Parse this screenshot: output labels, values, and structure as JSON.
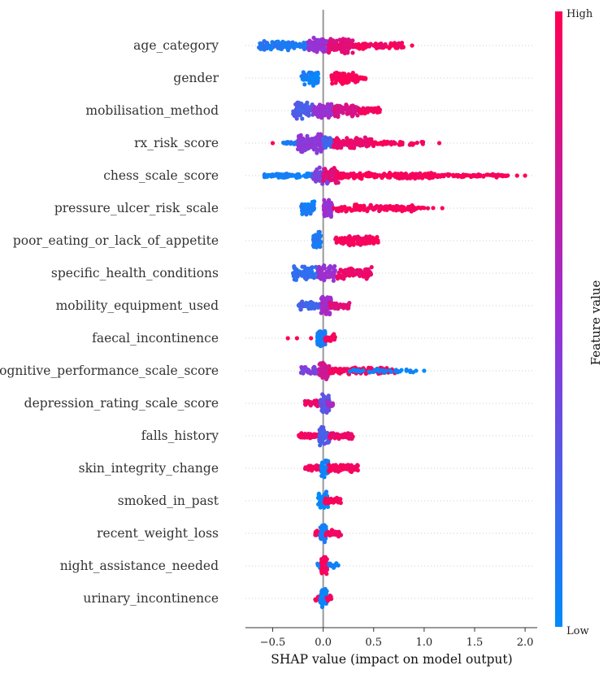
{
  "chart_data": {
    "type": "beeswarm",
    "title": "",
    "xlabel": "SHAP value (impact on model output)",
    "xlim": [
      -0.77,
      2.12
    ],
    "xticks": [
      -0.5,
      0.0,
      0.5,
      1.0,
      1.5,
      2.0
    ],
    "xtick_labels": [
      "−0.5",
      "0.0",
      "0.5",
      "1.0",
      "1.5",
      "2.0"
    ],
    "colorbar": {
      "title": "Feature value",
      "high_label": "High",
      "low_label": "Low",
      "low_color": "#008bfb",
      "mid_color": "#9b30d4",
      "high_color": "#ff0052"
    },
    "zero_line_color": "#999999",
    "features": [
      {
        "name": "age_category",
        "segments": [
          {
            "from": -0.65,
            "to": -0.1,
            "count": 120,
            "spread": 0.45,
            "value": 0.1
          },
          {
            "from": -0.15,
            "to": 0.05,
            "count": 80,
            "spread": 0.9,
            "value": 0.5
          },
          {
            "from": 0.05,
            "to": 0.3,
            "count": 100,
            "spread": 0.8,
            "value": 0.85
          },
          {
            "from": 0.3,
            "to": 0.8,
            "count": 80,
            "spread": 0.35,
            "value": 0.95
          }
        ],
        "outliers": [
          {
            "x": 0.88,
            "value": 1.0
          }
        ]
      },
      {
        "name": "gender",
        "segments": [
          {
            "from": -0.22,
            "to": -0.05,
            "count": 70,
            "spread": 0.75,
            "value": 0.05
          },
          {
            "from": 0.08,
            "to": 0.35,
            "count": 80,
            "spread": 0.65,
            "value": 0.97
          },
          {
            "from": 0.35,
            "to": 0.42,
            "count": 10,
            "spread": 0.15,
            "value": 0.97
          }
        ],
        "outliers": []
      },
      {
        "name": "mobilisation_method",
        "segments": [
          {
            "from": -0.3,
            "to": -0.1,
            "count": 80,
            "spread": 0.85,
            "value": 0.25
          },
          {
            "from": -0.1,
            "to": 0.1,
            "count": 80,
            "spread": 0.75,
            "value": 0.5
          },
          {
            "from": 0.1,
            "to": 0.35,
            "count": 80,
            "spread": 0.65,
            "value": 0.8
          },
          {
            "from": 0.35,
            "to": 0.57,
            "count": 50,
            "spread": 0.3,
            "value": 0.95
          }
        ],
        "outliers": []
      },
      {
        "name": "rx_risk_score",
        "segments": [
          {
            "from": -0.42,
            "to": -0.25,
            "count": 20,
            "spread": 0.15,
            "value": 0.1
          },
          {
            "from": -0.25,
            "to": 0.0,
            "count": 120,
            "spread": 0.95,
            "value": 0.45
          },
          {
            "from": 0.0,
            "to": 0.1,
            "count": 40,
            "spread": 0.6,
            "value": 0.2
          },
          {
            "from": 0.1,
            "to": 0.5,
            "count": 110,
            "spread": 0.55,
            "value": 0.9
          },
          {
            "from": 0.5,
            "to": 1.0,
            "count": 40,
            "spread": 0.2,
            "value": 0.95
          }
        ],
        "outliers": [
          {
            "x": -0.5,
            "value": 1.0
          },
          {
            "x": 1.15,
            "value": 1.0
          }
        ]
      },
      {
        "name": "chess_scale_score",
        "segments": [
          {
            "from": -0.6,
            "to": -0.1,
            "count": 90,
            "spread": 0.25,
            "value": 0.05
          },
          {
            "from": -0.1,
            "to": 0.05,
            "count": 60,
            "spread": 0.85,
            "value": 0.4
          },
          {
            "from": 0.0,
            "to": 0.15,
            "count": 60,
            "spread": 0.8,
            "value": 0.85
          },
          {
            "from": 0.15,
            "to": 1.1,
            "count": 200,
            "spread": 0.3,
            "value": 0.97
          },
          {
            "from": 1.1,
            "to": 1.85,
            "count": 80,
            "spread": 0.18,
            "value": 0.97
          }
        ],
        "outliers": [
          {
            "x": 1.92,
            "value": 1.0
          },
          {
            "x": 2.0,
            "value": 1.0
          },
          {
            "x": 1.12,
            "value": 1.0
          }
        ]
      },
      {
        "name": "pressure_ulcer_risk_scale",
        "segments": [
          {
            "from": -0.22,
            "to": -0.08,
            "count": 60,
            "spread": 0.65,
            "value": 0.08
          },
          {
            "from": 0.0,
            "to": 0.09,
            "count": 60,
            "spread": 0.9,
            "value": 0.5
          },
          {
            "from": 0.1,
            "to": 0.9,
            "count": 130,
            "spread": 0.35,
            "value": 0.97
          },
          {
            "from": 0.9,
            "to": 1.1,
            "count": 10,
            "spread": 0.1,
            "value": 0.97
          }
        ],
        "outliers": [
          {
            "x": 1.18,
            "value": 1.0
          }
        ]
      },
      {
        "name": "poor_eating_or_lack_of_appetite",
        "segments": [
          {
            "from": -0.1,
            "to": -0.02,
            "count": 60,
            "spread": 0.85,
            "value": 0.1
          },
          {
            "from": 0.12,
            "to": 0.55,
            "count": 120,
            "spread": 0.5,
            "value": 0.96
          }
        ],
        "outliers": []
      },
      {
        "name": "specific_health_conditions",
        "segments": [
          {
            "from": -0.3,
            "to": -0.05,
            "count": 80,
            "spread": 0.75,
            "value": 0.15
          },
          {
            "from": -0.05,
            "to": 0.12,
            "count": 60,
            "spread": 0.85,
            "value": 0.5
          },
          {
            "from": 0.12,
            "to": 0.48,
            "count": 90,
            "spread": 0.6,
            "value": 0.9
          }
        ],
        "outliers": []
      },
      {
        "name": "mobility_equipment_used",
        "segments": [
          {
            "from": -0.25,
            "to": 0.0,
            "count": 60,
            "spread": 0.4,
            "value": 0.2
          },
          {
            "from": -0.02,
            "to": 0.08,
            "count": 60,
            "spread": 0.95,
            "value": 0.55
          },
          {
            "from": 0.05,
            "to": 0.26,
            "count": 40,
            "spread": 0.35,
            "value": 0.85
          }
        ],
        "outliers": []
      },
      {
        "name": "faecal_incontinence",
        "segments": [
          {
            "from": -0.06,
            "to": 0.02,
            "count": 60,
            "spread": 0.9,
            "value": 0.08
          },
          {
            "from": 0.02,
            "to": 0.12,
            "count": 30,
            "spread": 0.45,
            "value": 0.95
          }
        ],
        "outliers": [
          {
            "x": -0.35,
            "value": 1.0
          },
          {
            "x": -0.26,
            "value": 1.0
          },
          {
            "x": -0.12,
            "value": 1.0
          }
        ]
      },
      {
        "name": "cognitive_performance_scale_score",
        "segments": [
          {
            "from": -0.22,
            "to": 0.0,
            "count": 50,
            "spread": 0.45,
            "value": 0.4
          },
          {
            "from": -0.04,
            "to": 0.06,
            "count": 60,
            "spread": 0.95,
            "value": 0.75
          },
          {
            "from": 0.06,
            "to": 0.72,
            "count": 140,
            "spread": 0.35,
            "value": 0.95
          },
          {
            "from": 0.2,
            "to": 0.9,
            "count": 40,
            "spread": 0.25,
            "value": 0.05
          }
        ],
        "outliers": [
          {
            "x": 0.92,
            "value": 0.0
          },
          {
            "x": 1.0,
            "value": 0.0
          }
        ]
      },
      {
        "name": "depression_rating_scale_score",
        "segments": [
          {
            "from": -0.18,
            "to": -0.04,
            "count": 30,
            "spread": 0.35,
            "value": 0.92
          },
          {
            "from": -0.03,
            "to": 0.06,
            "count": 60,
            "spread": 0.95,
            "value": 0.3
          },
          {
            "from": 0.04,
            "to": 0.1,
            "count": 20,
            "spread": 0.45,
            "value": 0.6
          }
        ],
        "outliers": []
      },
      {
        "name": "falls_history",
        "segments": [
          {
            "from": -0.25,
            "to": -0.03,
            "count": 40,
            "spread": 0.25,
            "value": 0.95
          },
          {
            "from": -0.04,
            "to": 0.06,
            "count": 60,
            "spread": 0.95,
            "value": 0.25
          },
          {
            "from": 0.06,
            "to": 0.3,
            "count": 50,
            "spread": 0.35,
            "value": 0.92
          }
        ],
        "outliers": []
      },
      {
        "name": "skin_integrity_change",
        "segments": [
          {
            "from": -0.18,
            "to": -0.02,
            "count": 40,
            "spread": 0.3,
            "value": 0.95
          },
          {
            "from": -0.02,
            "to": 0.05,
            "count": 50,
            "spread": 0.95,
            "value": 0.05
          },
          {
            "from": 0.05,
            "to": 0.35,
            "count": 70,
            "spread": 0.4,
            "value": 0.95
          }
        ],
        "outliers": []
      },
      {
        "name": "smoked_in_past",
        "segments": [
          {
            "from": -0.05,
            "to": 0.05,
            "count": 50,
            "spread": 0.9,
            "value": 0.05
          },
          {
            "from": 0.0,
            "to": 0.18,
            "count": 40,
            "spread": 0.35,
            "value": 0.97
          }
        ],
        "outliers": []
      },
      {
        "name": "recent_weight_loss",
        "segments": [
          {
            "from": -0.08,
            "to": 0.0,
            "count": 20,
            "spread": 0.3,
            "value": 0.95
          },
          {
            "from": -0.03,
            "to": 0.03,
            "count": 50,
            "spread": 0.95,
            "value": 0.05
          },
          {
            "from": 0.02,
            "to": 0.18,
            "count": 40,
            "spread": 0.35,
            "value": 0.95
          }
        ],
        "outliers": []
      },
      {
        "name": "night_assistance_needed",
        "segments": [
          {
            "from": -0.06,
            "to": 0.0,
            "count": 15,
            "spread": 0.25,
            "value": 0.05
          },
          {
            "from": -0.02,
            "to": 0.04,
            "count": 60,
            "spread": 0.95,
            "value": 0.95
          },
          {
            "from": 0.04,
            "to": 0.15,
            "count": 15,
            "spread": 0.3,
            "value": 0.05
          }
        ],
        "outliers": []
      },
      {
        "name": "urinary_incontinence",
        "segments": [
          {
            "from": -0.08,
            "to": 0.0,
            "count": 15,
            "spread": 0.3,
            "value": 0.95
          },
          {
            "from": -0.03,
            "to": 0.04,
            "count": 50,
            "spread": 0.95,
            "value": 0.05
          },
          {
            "from": 0.03,
            "to": 0.08,
            "count": 15,
            "spread": 0.3,
            "value": 0.92
          }
        ],
        "outliers": []
      }
    ]
  }
}
